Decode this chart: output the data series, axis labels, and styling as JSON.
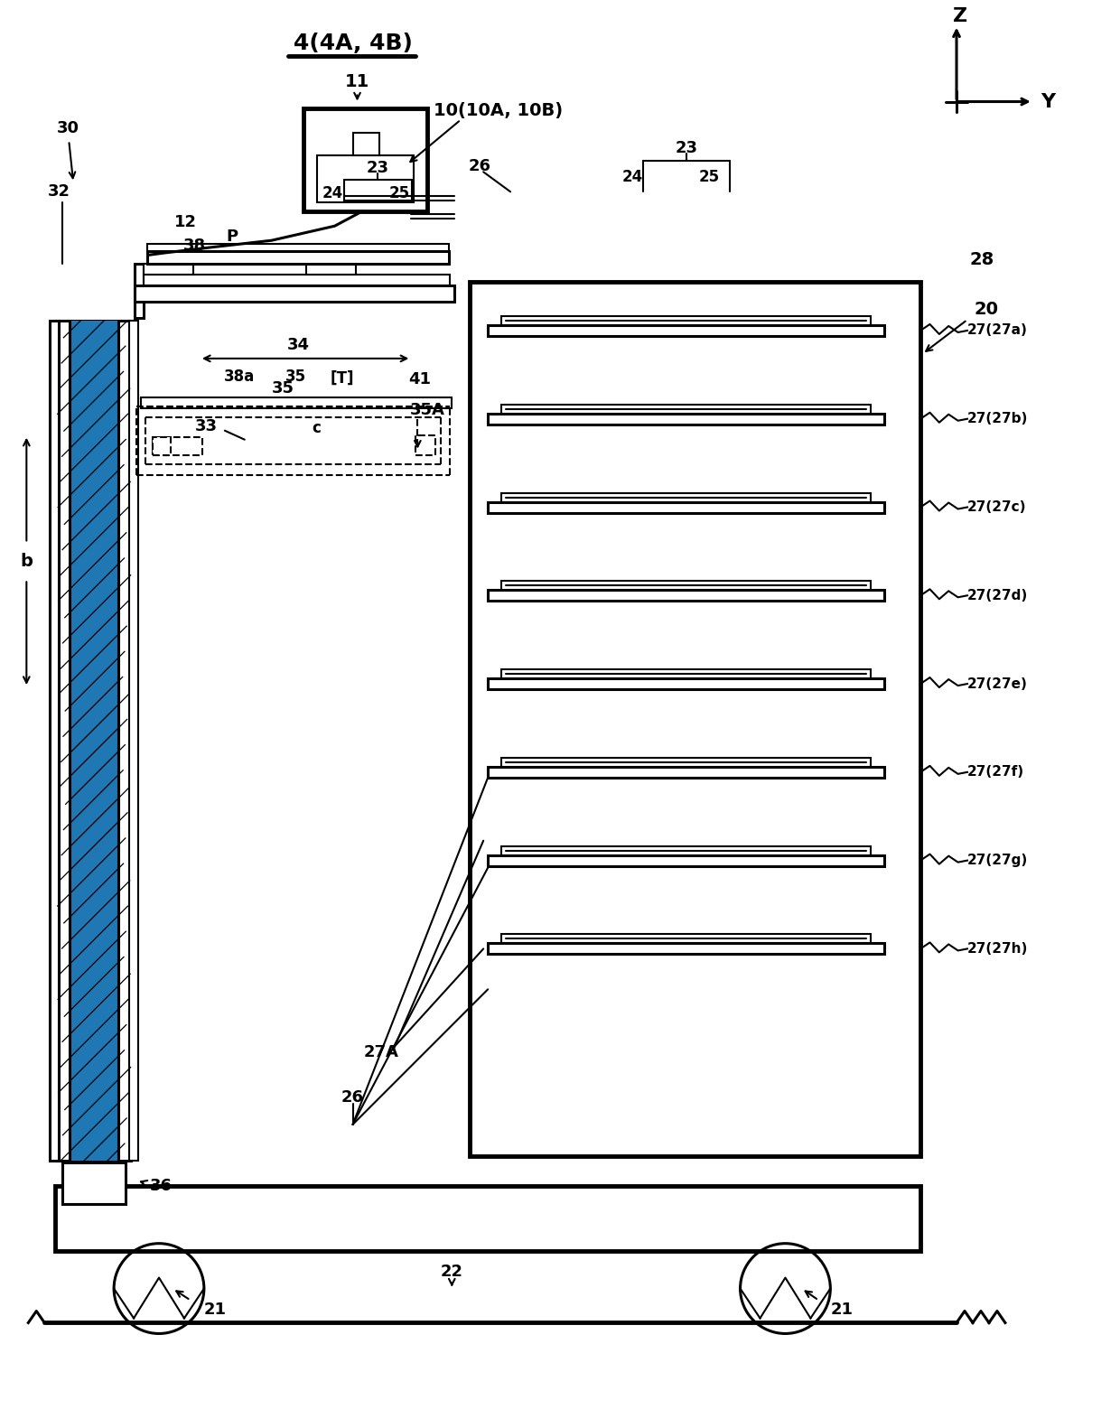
{
  "bg": "#ffffff",
  "lc": "#000000",
  "fig_label": "4(4A, 4B)",
  "tray_labels": [
    "27(27a)",
    "27(27b)",
    "27(27c)",
    "27(27d)",
    "27(27e)",
    "27(27f)",
    "27(27g)",
    "27(27h)"
  ]
}
